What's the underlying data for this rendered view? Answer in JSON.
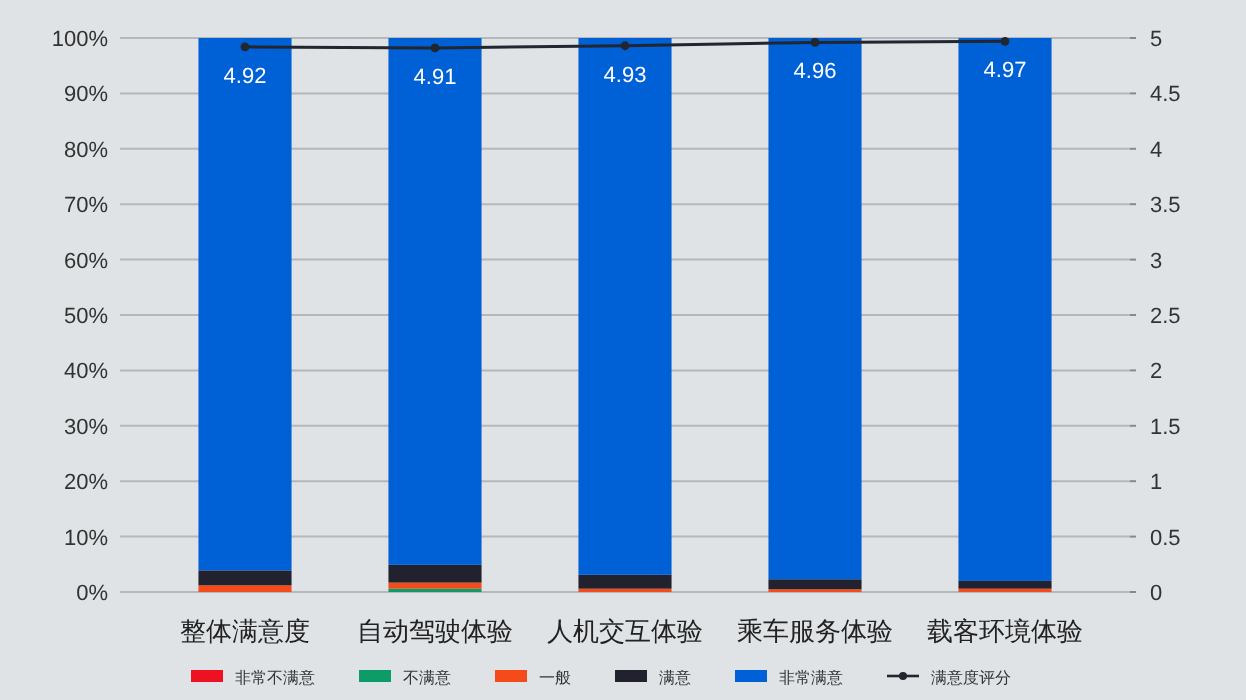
{
  "chart_data": {
    "type": "bar",
    "stacked": true,
    "categories": [
      "整体满意度",
      "自动驾驶体验",
      "人机交互体验",
      "乘车服务体验",
      "载客环境体验"
    ],
    "series": [
      {
        "name": "非常不满意",
        "color": "#ee1122",
        "values": [
          0,
          0,
          0,
          0,
          0
        ]
      },
      {
        "name": "不满意",
        "color": "#0d9b68",
        "values": [
          0,
          0.6,
          0,
          0,
          0
        ]
      },
      {
        "name": "一般",
        "color": "#f54b1a",
        "values": [
          1.2,
          1.1,
          0.6,
          0.5,
          0.6
        ]
      },
      {
        "name": "满意",
        "color": "#22222f",
        "values": [
          2.7,
          3.2,
          2.5,
          1.8,
          1.4
        ]
      },
      {
        "name": "非常满意",
        "color": "#0060d6",
        "values": [
          96.1,
          95.1,
          96.9,
          97.7,
          98.0
        ]
      },
      {
        "name": "满意度评分",
        "type": "line",
        "axis": "y2",
        "color": "#222630",
        "marker": "circle",
        "values": [
          4.92,
          4.91,
          4.93,
          4.96,
          4.97
        ],
        "value_labels": [
          "4.92",
          "4.91",
          "4.93",
          "4.96",
          "4.97"
        ]
      }
    ],
    "ylim": [
      0,
      100
    ],
    "yticks": [
      {
        "value": 0,
        "label": "0%"
      },
      {
        "value": 10,
        "label": "10%"
      },
      {
        "value": 20,
        "label": "20%"
      },
      {
        "value": 30,
        "label": "30%"
      },
      {
        "value": 40,
        "label": "40%"
      },
      {
        "value": 50,
        "label": "50%"
      },
      {
        "value": 60,
        "label": "60%"
      },
      {
        "value": 70,
        "label": "70%"
      },
      {
        "value": 80,
        "label": "80%"
      },
      {
        "value": 90,
        "label": "90%"
      },
      {
        "value": 100,
        "label": "100%"
      }
    ],
    "y2lim": [
      0,
      5
    ],
    "y2ticks": [
      0,
      0.5,
      1,
      1.5,
      2,
      2.5,
      3,
      3.5,
      4,
      4.5,
      5
    ],
    "grid": "y",
    "legend": "bottom"
  }
}
